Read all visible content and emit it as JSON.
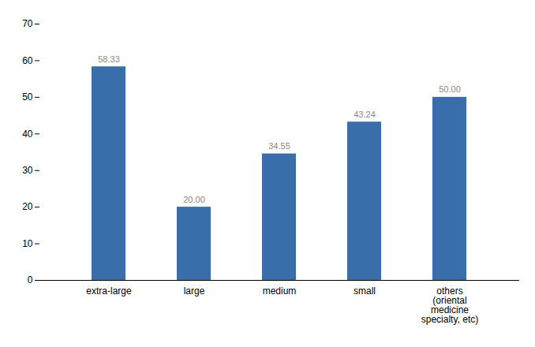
{
  "chart_data": {
    "type": "bar",
    "categories": [
      "extra-large",
      "large",
      "medium",
      "small",
      "others\n(oriental\nmedicine\nspecialty, etc)"
    ],
    "values": [
      58.33,
      20.0,
      34.55,
      43.24,
      50.0
    ],
    "value_labels": [
      "58.33",
      "20.00",
      "34.55",
      "43.24",
      "50.00"
    ],
    "data_labels": true,
    "color": "#3A6EAA",
    "ylim": [
      0,
      70
    ],
    "yticks": [
      0,
      10,
      20,
      30,
      40,
      50,
      60,
      70
    ],
    "grid": false
  }
}
